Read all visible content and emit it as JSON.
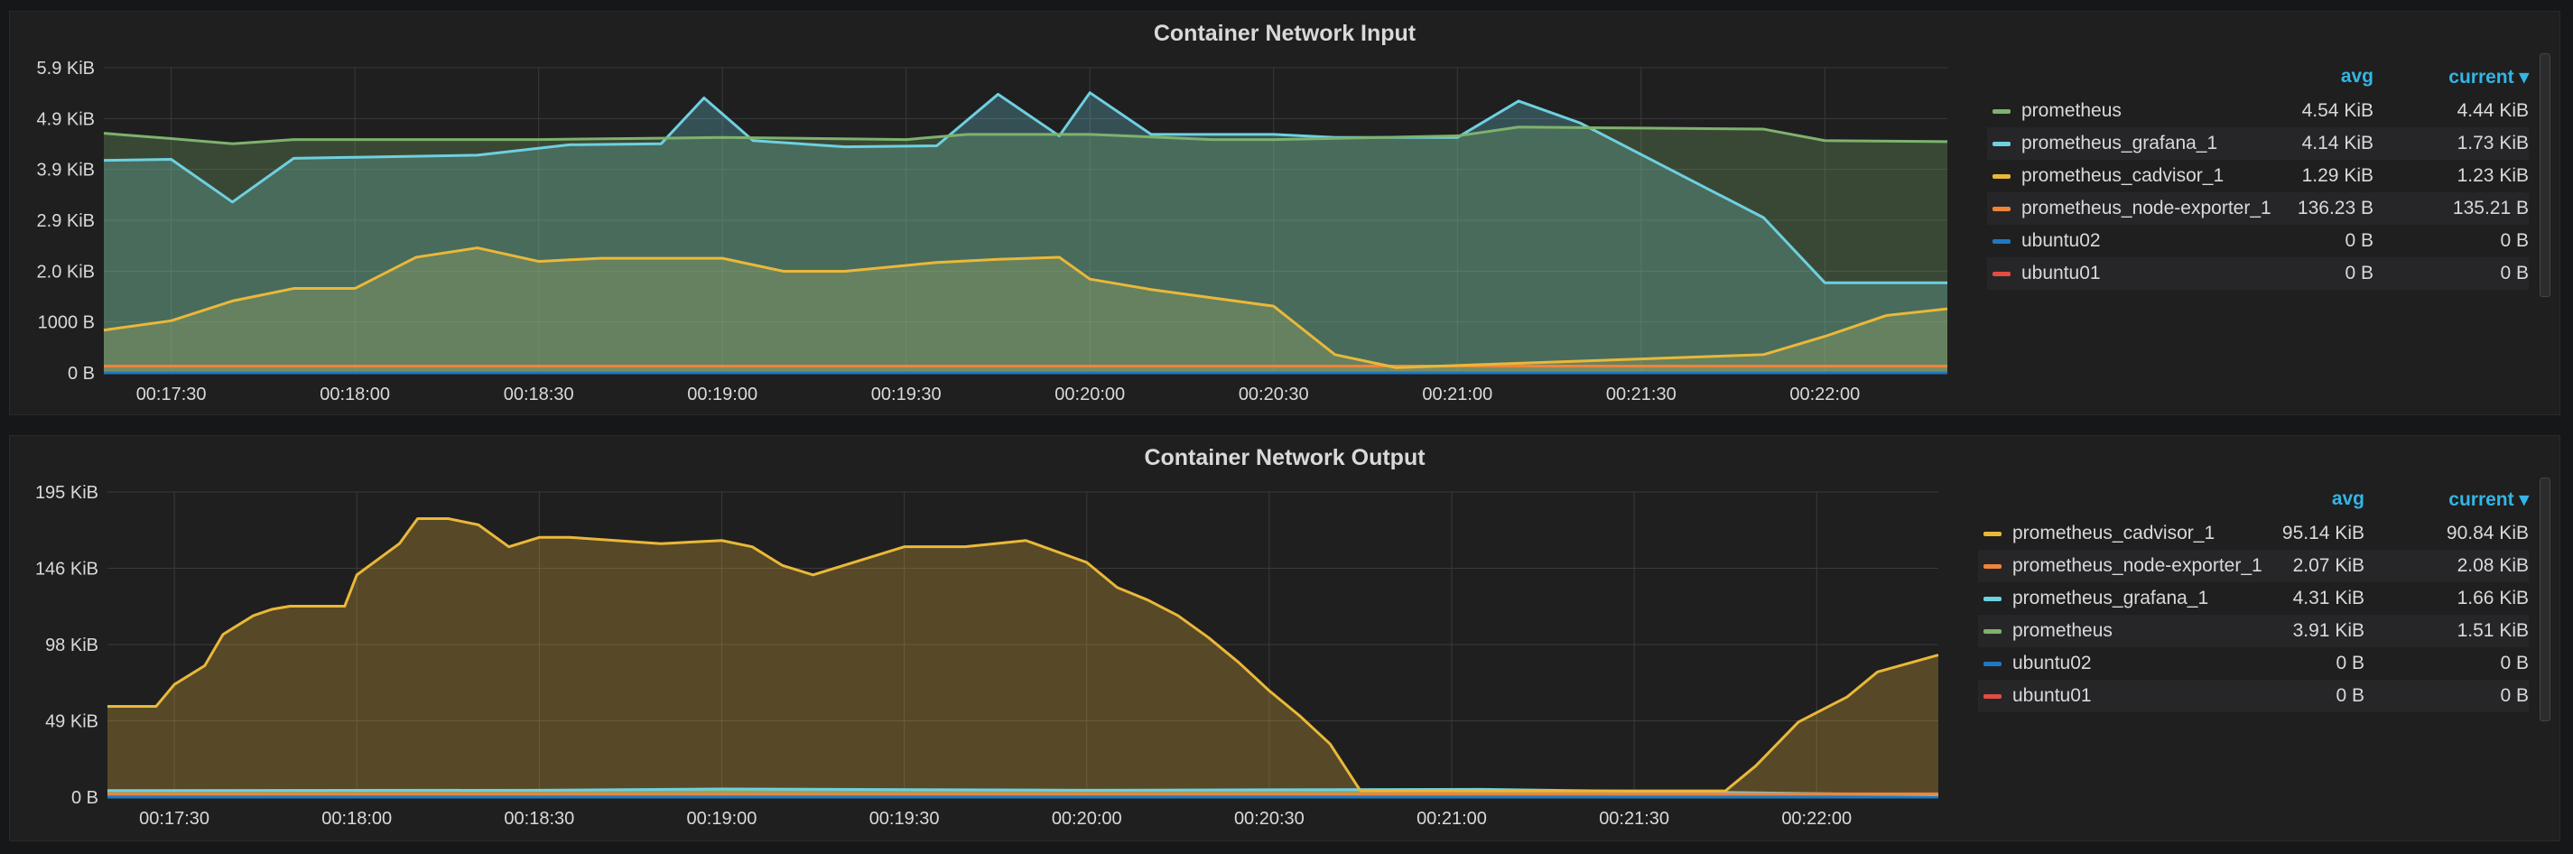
{
  "chart_data": [
    {
      "type": "area",
      "title": "Container Network Input",
      "x_ticks": [
        "00:17:30",
        "00:18:00",
        "00:18:30",
        "00:19:00",
        "00:19:30",
        "00:20:00",
        "00:20:30",
        "00:21:00",
        "00:21:30",
        "00:22:00"
      ],
      "x_range": [
        "00:17:19",
        "00:22:20"
      ],
      "y_ticks": [
        "0 B",
        "1000 B",
        "2.0 KiB",
        "2.9 KiB",
        "3.9 KiB",
        "4.9 KiB",
        "5.9 KiB"
      ],
      "ylim_kib": [
        0,
        5.86
      ],
      "legend_headers": {
        "avg": "avg",
        "current": "current ▾"
      },
      "series": [
        {
          "name": "prometheus",
          "color": "#7eb26d",
          "avg": "4.54 KiB",
          "current": "4.44 KiB",
          "x": [
            "00:17:19",
            "00:17:30",
            "00:17:40",
            "00:17:50",
            "00:18:00",
            "00:18:30",
            "00:19:00",
            "00:19:30",
            "00:19:40",
            "00:20:00",
            "00:20:20",
            "00:20:30",
            "00:21:00",
            "00:21:10",
            "00:21:30",
            "00:21:50",
            "00:22:00",
            "00:22:20"
          ],
          "y": [
            4.6,
            4.5,
            4.4,
            4.48,
            4.48,
            4.48,
            4.52,
            4.48,
            4.58,
            4.58,
            4.48,
            4.48,
            4.55,
            4.72,
            4.7,
            4.68,
            4.46,
            4.44
          ]
        },
        {
          "name": "prometheus_grafana_1",
          "color": "#6ed0e0",
          "avg": "4.14 KiB",
          "current": "1.73 KiB",
          "x": [
            "00:17:19",
            "00:17:30",
            "00:17:40",
            "00:17:50",
            "00:18:00",
            "00:18:20",
            "00:18:35",
            "00:18:50",
            "00:18:57",
            "00:19:05",
            "00:19:20",
            "00:19:35",
            "00:19:45",
            "00:19:55",
            "00:20:00",
            "00:20:10",
            "00:20:30",
            "00:20:40",
            "00:21:00",
            "00:21:10",
            "00:21:20",
            "00:21:50",
            "00:22:00",
            "00:22:20"
          ],
          "y": [
            4.08,
            4.1,
            3.28,
            4.12,
            4.14,
            4.18,
            4.38,
            4.4,
            5.28,
            4.46,
            4.34,
            4.36,
            5.35,
            4.55,
            5.38,
            4.58,
            4.58,
            4.52,
            4.52,
            5.22,
            4.8,
            2.98,
            1.73,
            1.73
          ]
        },
        {
          "name": "prometheus_cadvisor_1",
          "color": "#eab839",
          "avg": "1.29 KiB",
          "current": "1.23 KiB",
          "x": [
            "00:17:19",
            "00:17:30",
            "00:17:40",
            "00:17:50",
            "00:18:00",
            "00:18:10",
            "00:18:20",
            "00:18:30",
            "00:18:40",
            "00:19:00",
            "00:19:10",
            "00:19:20",
            "00:19:35",
            "00:19:45",
            "00:19:55",
            "00:20:00",
            "00:20:10",
            "00:20:30",
            "00:20:40",
            "00:20:50",
            "00:21:50",
            "00:22:00",
            "00:22:10",
            "00:22:20"
          ],
          "y": [
            0.82,
            1.0,
            1.38,
            1.62,
            1.62,
            2.22,
            2.4,
            2.14,
            2.2,
            2.2,
            1.95,
            1.95,
            2.12,
            2.18,
            2.22,
            1.8,
            1.6,
            1.28,
            0.35,
            0.1,
            0.35,
            0.7,
            1.1,
            1.23
          ]
        },
        {
          "name": "prometheus_node-exporter_1",
          "color": "#ef843c",
          "avg": "136.23 B",
          "current": "135.21 B",
          "x": [
            "00:17:19",
            "00:22:20"
          ],
          "y": [
            0.13,
            0.13
          ]
        },
        {
          "name": "ubuntu02",
          "color": "#1f78c1",
          "avg": "0 B",
          "current": "0 B",
          "x": [
            "00:17:19",
            "00:22:20"
          ],
          "y": [
            0,
            0
          ]
        },
        {
          "name": "ubuntu01",
          "color": "#e24d42",
          "avg": "0 B",
          "current": "0 B",
          "x": [
            "00:17:19",
            "00:22:20"
          ],
          "y": [
            0,
            0
          ]
        }
      ]
    },
    {
      "type": "area",
      "title": "Container Network Output",
      "x_ticks": [
        "00:17:30",
        "00:18:00",
        "00:18:30",
        "00:19:00",
        "00:19:30",
        "00:20:00",
        "00:20:30",
        "00:21:00",
        "00:21:30",
        "00:22:00"
      ],
      "x_range": [
        "00:17:19",
        "00:22:20"
      ],
      "y_ticks": [
        "0 B",
        "49 KiB",
        "98 KiB",
        "146 KiB",
        "195 KiB"
      ],
      "ylim_kib": [
        0,
        195
      ],
      "legend_headers": {
        "avg": "avg",
        "current": "current ▾"
      },
      "series": [
        {
          "name": "prometheus_cadvisor_1",
          "color": "#eab839",
          "avg": "95.14 KiB",
          "current": "90.84 KiB",
          "x": [
            "00:17:19",
            "00:17:27",
            "00:17:30",
            "00:17:35",
            "00:17:38",
            "00:17:43",
            "00:17:46",
            "00:17:49",
            "00:17:58",
            "00:18:00",
            "00:18:07",
            "00:18:10",
            "00:18:15",
            "00:18:20",
            "00:18:25",
            "00:18:30",
            "00:18:35",
            "00:18:50",
            "00:19:00",
            "00:19:05",
            "00:19:10",
            "00:19:15",
            "00:19:20",
            "00:19:30",
            "00:19:40",
            "00:19:50",
            "00:20:00",
            "00:20:05",
            "00:20:10",
            "00:20:15",
            "00:20:20",
            "00:20:25",
            "00:20:30",
            "00:20:35",
            "00:20:40",
            "00:20:45",
            "00:21:10",
            "00:21:45",
            "00:21:50",
            "00:21:57",
            "00:22:05",
            "00:22:10",
            "00:22:20"
          ],
          "y": [
            58,
            58,
            72,
            84,
            104,
            116,
            120,
            122,
            122,
            142,
            162,
            178,
            178,
            174,
            160,
            166,
            166,
            162,
            164,
            160,
            148,
            142,
            148,
            160,
            160,
            164,
            150,
            134,
            126,
            116,
            102,
            86,
            68,
            52,
            34,
            4,
            4,
            4,
            20,
            48,
            64,
            80,
            90.84
          ]
        },
        {
          "name": "prometheus_node-exporter_1",
          "color": "#ef843c",
          "avg": "2.07 KiB",
          "current": "2.08 KiB",
          "x": [
            "00:17:19",
            "00:22:20"
          ],
          "y": [
            2.07,
            2.08
          ]
        },
        {
          "name": "prometheus_grafana_1",
          "color": "#6ed0e0",
          "avg": "4.31 KiB",
          "current": "1.66 KiB",
          "x": [
            "00:17:19",
            "00:18:30",
            "00:19:00",
            "00:20:00",
            "00:21:05",
            "00:21:20",
            "00:22:00",
            "00:22:20"
          ],
          "y": [
            4.2,
            4.4,
            5.2,
            4.4,
            5.0,
            4.2,
            2.2,
            1.66
          ]
        },
        {
          "name": "prometheus",
          "color": "#7eb26d",
          "avg": "3.91 KiB",
          "current": "1.51 KiB",
          "x": [
            "00:17:19",
            "00:21:00",
            "00:22:20"
          ],
          "y": [
            3.9,
            3.9,
            1.51
          ]
        },
        {
          "name": "ubuntu02",
          "color": "#1f78c1",
          "avg": "0 B",
          "current": "0 B",
          "x": [
            "00:17:19",
            "00:22:20"
          ],
          "y": [
            0,
            0
          ]
        },
        {
          "name": "ubuntu01",
          "color": "#e24d42",
          "avg": "0 B",
          "current": "0 B",
          "x": [
            "00:17:19",
            "00:22:20"
          ],
          "y": [
            0,
            0
          ]
        }
      ]
    }
  ]
}
